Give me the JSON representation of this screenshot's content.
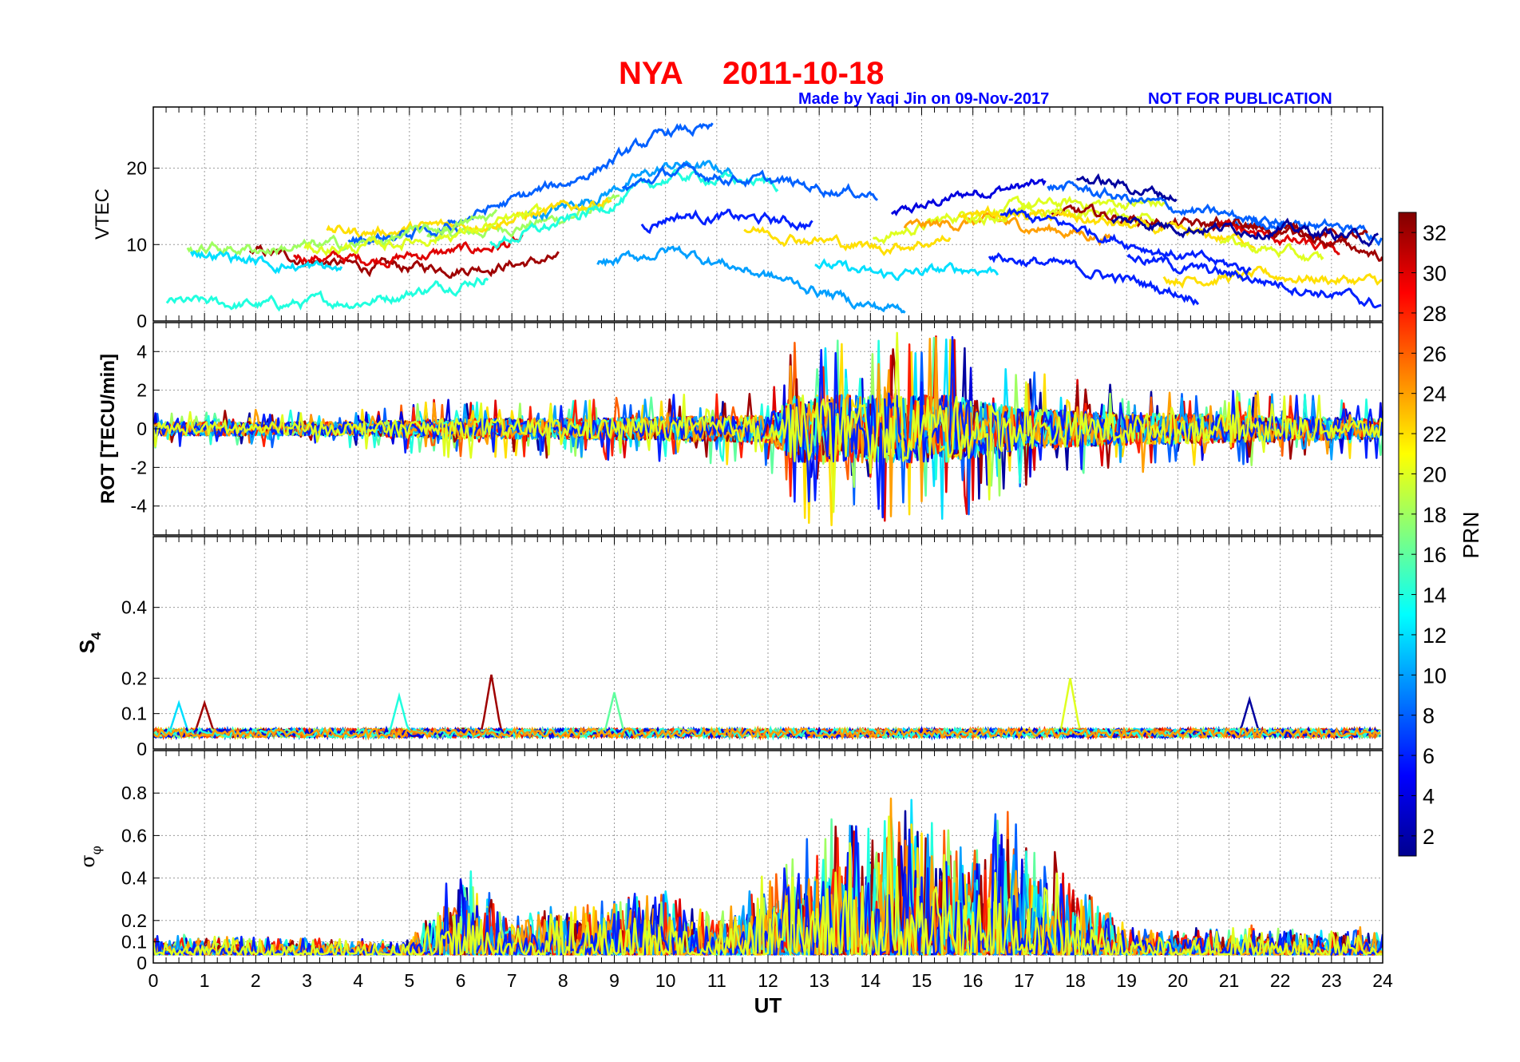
{
  "title": {
    "station": "NYA",
    "date": "2011-10-18",
    "credit": "Made by Yaqi Jin on 09-Nov-2017",
    "notice": "NOT FOR PUBLICATION"
  },
  "colors": {
    "title": "#ff0000",
    "credit": "#0000ff",
    "grid": "#8c8c8c",
    "axis": "#000000"
  },
  "chart_data": [
    {
      "type": "line",
      "panel": "VTEC",
      "ylabel": "VTEC",
      "ylim": [
        0,
        28
      ],
      "yticks": [
        0,
        10,
        20
      ],
      "xlim": [
        0,
        24
      ],
      "series_by": "PRN",
      "note_values": "multi-satellite traces, approx. envelope",
      "time_axis_UT": [
        0,
        2,
        4,
        6,
        8,
        10,
        12,
        14,
        16,
        18,
        20,
        22,
        24
      ],
      "median_vtec_approx": [
        7,
        6,
        6,
        8,
        11,
        16,
        14,
        12,
        14,
        13,
        11,
        10,
        8
      ]
    },
    {
      "type": "line",
      "panel": "ROT",
      "ylabel": "ROT [TECU/min]",
      "ylim": [
        -5.5,
        5.5
      ],
      "yticks": [
        -4,
        -2,
        0,
        2,
        4
      ],
      "xlim": [
        0,
        24
      ],
      "activity_envelope_approx": {
        "UT": [
          0,
          4,
          5.5,
          8,
          12,
          12.5,
          14,
          15.5,
          17,
          18.5,
          24
        ],
        "amplitude": [
          1,
          1,
          1.5,
          1.5,
          2,
          5,
          5,
          5,
          3,
          2.5,
          1.5
        ]
      }
    },
    {
      "type": "line",
      "panel": "S4",
      "ylabel": "S4",
      "ylim": [
        0,
        0.6
      ],
      "yticks": [
        0,
        0.1,
        0.2,
        0.4
      ],
      "xlim": [
        0,
        24
      ],
      "background_level_approx": 0.04,
      "peaks": [
        {
          "UT": 0.5,
          "value": 0.13
        },
        {
          "UT": 1.0,
          "value": 0.13
        },
        {
          "UT": 4.8,
          "value": 0.15
        },
        {
          "UT": 6.6,
          "value": 0.21
        },
        {
          "UT": 9.0,
          "value": 0.16
        },
        {
          "UT": 17.9,
          "value": 0.2
        },
        {
          "UT": 21.4,
          "value": 0.14
        }
      ]
    },
    {
      "type": "line",
      "panel": "sigma_phi",
      "ylabel": "σφ",
      "ylim": [
        0,
        1
      ],
      "yticks": [
        0,
        0.1,
        0.2,
        0.4,
        0.6,
        0.8
      ],
      "xlim": [
        0,
        24
      ],
      "xlabel": "UT",
      "xticks": [
        0,
        1,
        2,
        3,
        4,
        5,
        6,
        7,
        8,
        9,
        10,
        11,
        12,
        13,
        14,
        15,
        16,
        17,
        18,
        19,
        20,
        21,
        22,
        23,
        24
      ],
      "activity_envelope_approx": {
        "UT": [
          0,
          5,
          6,
          7,
          10,
          11,
          12.5,
          13.5,
          15,
          16,
          16.7,
          18,
          19,
          24
        ],
        "amplitude": [
          0.12,
          0.1,
          0.4,
          0.2,
          0.3,
          0.2,
          0.45,
          0.6,
          0.65,
          0.5,
          0.65,
          0.35,
          0.15,
          0.15
        ]
      }
    }
  ],
  "colorbar": {
    "label": "PRN",
    "range": [
      1,
      33
    ],
    "ticks": [
      "2",
      "4",
      "6",
      "8",
      "10",
      "12",
      "14",
      "16",
      "18",
      "20",
      "22",
      "24",
      "26",
      "28",
      "30",
      "32"
    ]
  }
}
